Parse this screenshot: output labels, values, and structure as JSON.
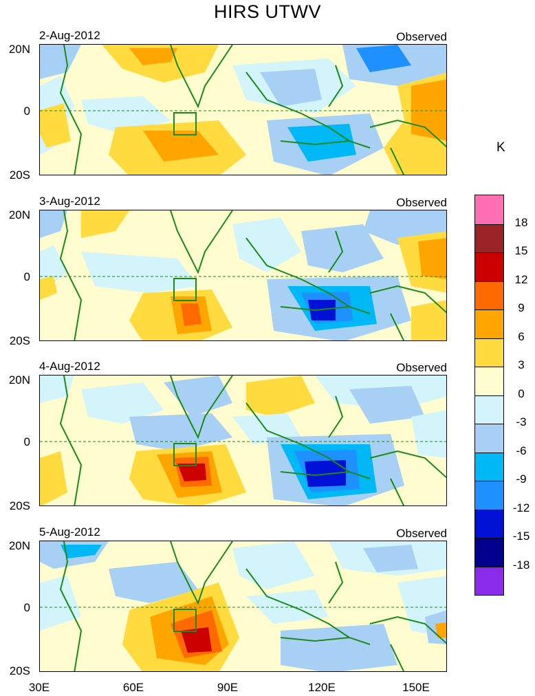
{
  "title": "HIRS UTWV",
  "unit": "K",
  "panels": [
    {
      "date": "2-Aug-2012",
      "label": "Observed"
    },
    {
      "date": "3-Aug-2012",
      "label": "Observed"
    },
    {
      "date": "4-Aug-2012",
      "label": "Observed"
    },
    {
      "date": "5-Aug-2012",
      "label": "Observed"
    }
  ],
  "lat_labels": [
    "20N",
    "0",
    "20S"
  ],
  "lon_labels": [
    "30E",
    "60E",
    "90E",
    "120E",
    "150E"
  ],
  "colorbar": {
    "labels": [
      "18",
      "15",
      "12",
      "9",
      "6",
      "3",
      "0",
      "-3",
      "-6",
      "-9",
      "-12",
      "-15",
      "-18"
    ],
    "colors": [
      "#ff6fb4",
      "#9b2226",
      "#cc0000",
      "#ff6a00",
      "#ffa500",
      "#ffdb40",
      "#fffdd0",
      "#d2f4fa",
      "#a8d0f5",
      "#00b8f5",
      "#1e90ff",
      "#0010d4",
      "#00008c",
      "#8b2bea"
    ]
  },
  "colors": {
    "coast": "#1a8a1a",
    "box": "#1a8a1a"
  }
}
